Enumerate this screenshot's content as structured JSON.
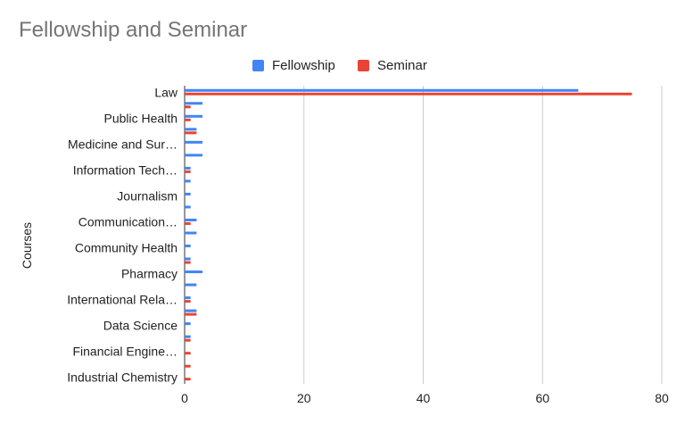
{
  "chart_data": {
    "type": "bar",
    "orientation": "horizontal",
    "title": "Fellowship and Seminar",
    "ylabel": "Courses",
    "xlabel": "",
    "xlim": [
      0,
      80
    ],
    "x_ticks": [
      "0",
      "20",
      "40",
      "60",
      "80"
    ],
    "grid": true,
    "legend_position": "top",
    "row_labels": [
      "Law",
      "",
      "Public Health",
      "",
      "Medicine and Sur…",
      "",
      "Information Tech…",
      "",
      "Journalism",
      "",
      "Communication…",
      "",
      "Community Health",
      "",
      "Pharmacy",
      "",
      "International Rela…",
      "",
      "Data Science",
      "",
      "Financial Engine…",
      "",
      "Industrial Chemistry"
    ],
    "series": [
      {
        "name": "Fellowship",
        "color": "#4285f4",
        "values": [
          66,
          3,
          3,
          2,
          3,
          3,
          1,
          1,
          1,
          1,
          2,
          2,
          1,
          1,
          3,
          2,
          1,
          2,
          1,
          1,
          0,
          0,
          0
        ]
      },
      {
        "name": "Seminar",
        "color": "#ea4335",
        "values": [
          75,
          1,
          1,
          2,
          0,
          0,
          1,
          0,
          0,
          0,
          1,
          0,
          0,
          1,
          0,
          0,
          1,
          2,
          0,
          1,
          1,
          1,
          1
        ]
      }
    ]
  }
}
